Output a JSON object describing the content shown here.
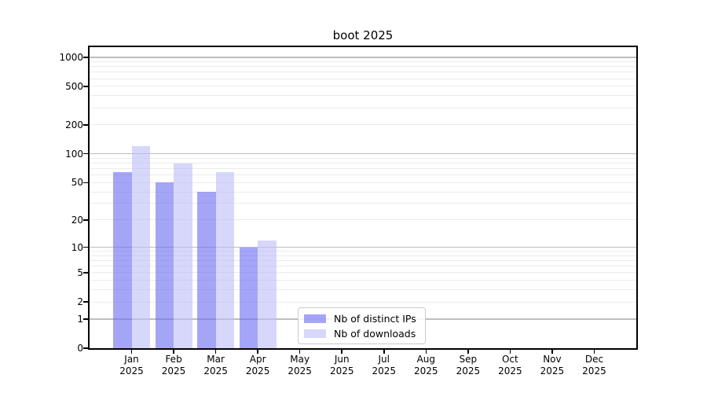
{
  "chart_data": {
    "type": "bar",
    "title": "boot 2025",
    "categories": [
      "Jan",
      "Feb",
      "Mar",
      "Apr",
      "May",
      "Jun",
      "Jul",
      "Aug",
      "Sep",
      "Oct",
      "Nov",
      "Dec"
    ],
    "year": "2025",
    "series": [
      {
        "name": "Nb of distinct IPs",
        "color": "#a6a6f4",
        "fill": "rgba(110,110,243,0.62)",
        "values": [
          65,
          50,
          40,
          10,
          null,
          null,
          null,
          null,
          null,
          null,
          null,
          null
        ]
      },
      {
        "name": "Nb of downloads",
        "color": "#d9d9f9",
        "fill": "rgba(190,190,250,0.62)",
        "values": [
          120,
          80,
          65,
          12,
          null,
          null,
          null,
          null,
          null,
          null,
          null,
          null
        ]
      }
    ],
    "yscale": "log1p",
    "yticks": [
      0,
      1,
      2,
      5,
      10,
      20,
      50,
      100,
      200,
      500,
      1000
    ],
    "ylim": [
      0,
      1270
    ],
    "grid": "on",
    "legend_position": "bottom-center-inside",
    "axis_color": "#000000",
    "major_grid_color": "#bdbdbd",
    "minor_grid_color": "#ebebeb"
  }
}
